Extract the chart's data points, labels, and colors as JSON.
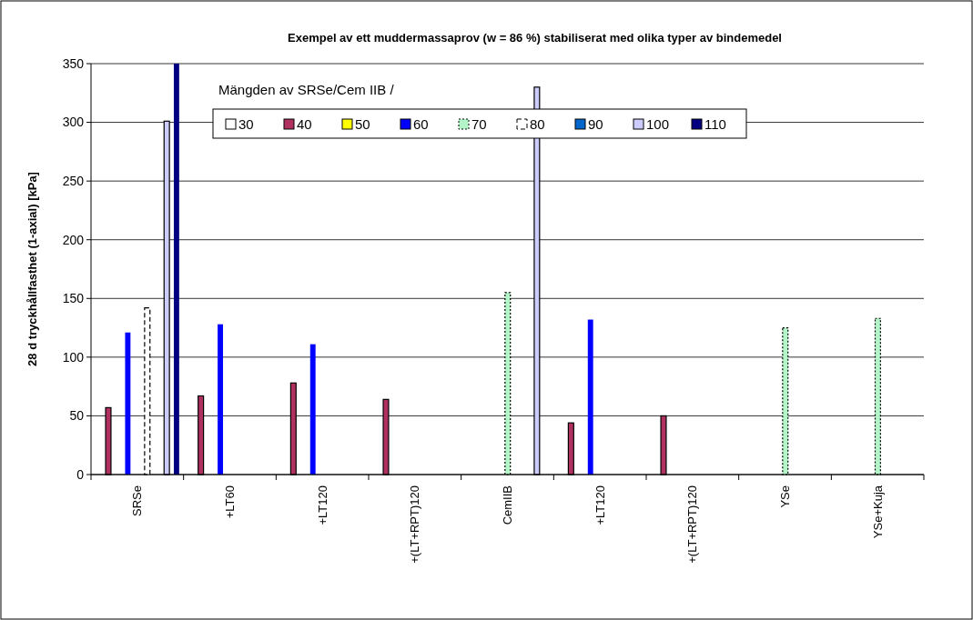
{
  "chart_data": {
    "type": "bar",
    "title": "Exempel av ett muddermassaprov (w = 86 %)  stabiliserat med olika typer av bindemedel",
    "ylabel": "28 d tryckhållfasthet (1-axial) [kPa]",
    "legend_title": "Mängden av SRSe/Cem IIB /",
    "categories": [
      "SRSe",
      "+LT60",
      "+LT120",
      "+(LT+RPT)120",
      "CemIIB",
      "+LT120",
      "+(LT+RPT)120",
      "YSe",
      "YSe+Kuja"
    ],
    "series": [
      {
        "name": "30",
        "color": "#ffffff",
        "values": [
          null,
          null,
          null,
          null,
          null,
          null,
          null,
          null,
          null
        ]
      },
      {
        "name": "40",
        "color": "#b03060",
        "values": [
          57,
          67,
          78,
          64,
          null,
          44,
          50,
          null,
          null
        ]
      },
      {
        "name": "50",
        "color": "#ffff00",
        "values": [
          null,
          null,
          null,
          null,
          null,
          null,
          null,
          null,
          null
        ]
      },
      {
        "name": "60",
        "color": "#0000ff",
        "values": [
          121,
          128,
          111,
          null,
          null,
          132,
          null,
          null,
          null
        ]
      },
      {
        "name": "70",
        "color": "#b3f5c8",
        "line_style": "dotted",
        "values": [
          null,
          null,
          null,
          null,
          155,
          null,
          null,
          125,
          133
        ]
      },
      {
        "name": "80",
        "color": "#ffffff",
        "line_style": "dashed",
        "values": [
          142,
          null,
          null,
          null,
          null,
          null,
          null,
          null,
          null
        ]
      },
      {
        "name": "90",
        "color": "#0066cc",
        "values": [
          null,
          null,
          null,
          null,
          null,
          null,
          null,
          null,
          null
        ]
      },
      {
        "name": "100",
        "color": "#ccccff",
        "values": [
          301,
          null,
          null,
          null,
          330,
          null,
          null,
          null,
          null
        ]
      },
      {
        "name": "110",
        "color": "#000080",
        "values": [
          350,
          null,
          null,
          null,
          null,
          null,
          null,
          null,
          null
        ]
      }
    ],
    "ylim": [
      0,
      350
    ],
    "yticks": [
      0,
      50,
      100,
      150,
      200,
      250,
      300,
      350
    ],
    "grid": "y",
    "legend": "top"
  }
}
